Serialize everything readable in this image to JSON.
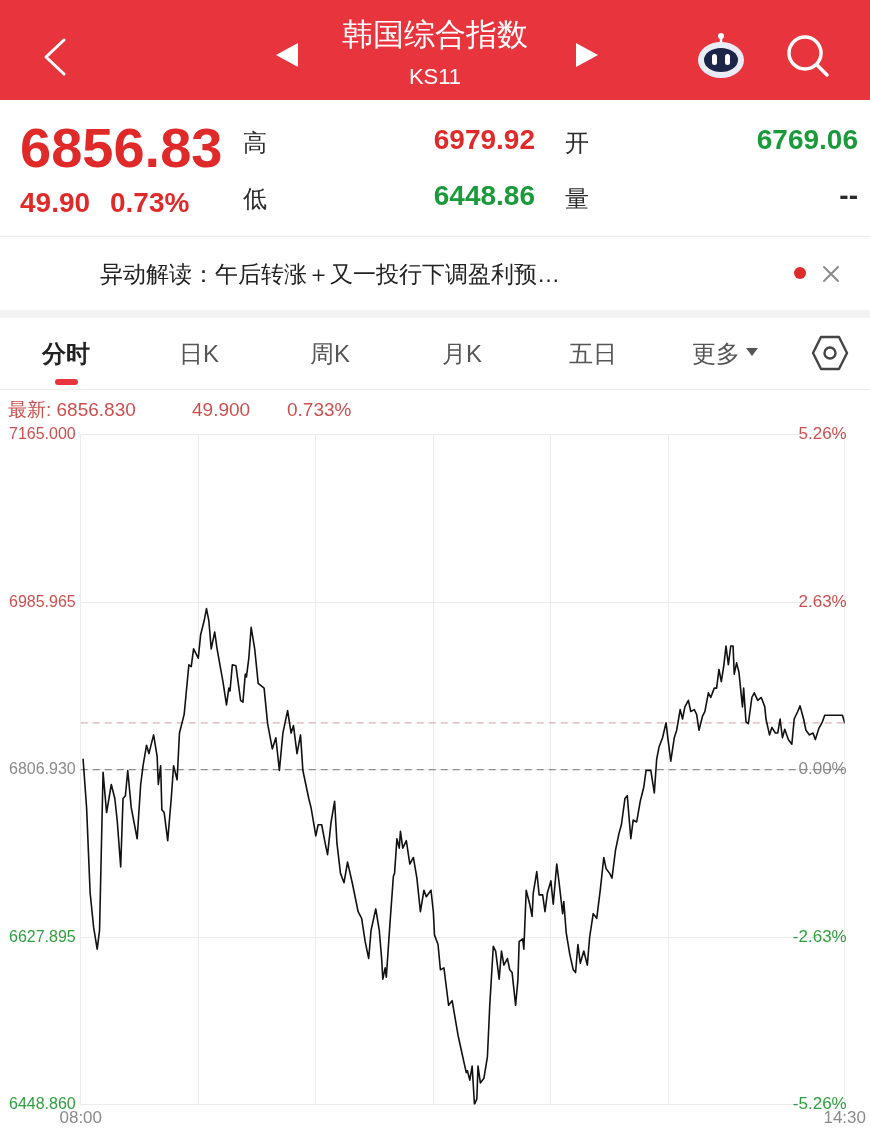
{
  "chart_data": {
    "type": "line",
    "title": "韩国综合指数",
    "subtitle": "KS11",
    "annotations": [
      "6856.83",
      "49.90",
      "0.73%",
      "高",
      "6979.92",
      "低",
      "6448.86",
      "开",
      "6769.06",
      "量",
      "--",
      "异动解读：午后转涨＋又一投行下调盈利预…",
      "分时",
      "日K",
      "周K",
      "月K",
      "五日",
      "更多",
      "最新: 6856.830",
      "49.900",
      "0.733%"
    ],
    "x": [
      8.02,
      8.05,
      8.08,
      8.11,
      8.14,
      8.16,
      8.19,
      8.22,
      8.26,
      8.29,
      8.31,
      8.34,
      8.36,
      8.38,
      8.4,
      8.43,
      8.48,
      8.51,
      8.53,
      8.56,
      8.58,
      8.62,
      8.65,
      8.66,
      8.68,
      8.69,
      8.71,
      8.74,
      8.77,
      8.79,
      8.82,
      8.84,
      8.88,
      8.92,
      8.94,
      8.96,
      9.0,
      9.02,
      9.05,
      9.07,
      9.09,
      9.11,
      9.14,
      9.16,
      9.21,
      9.24,
      9.26,
      9.27,
      9.29,
      9.32,
      9.36,
      9.38,
      9.4,
      9.41,
      9.43,
      9.45,
      9.48,
      9.51,
      9.56,
      9.59,
      9.63,
      9.66,
      9.69,
      9.72,
      9.76,
      9.79,
      9.81,
      9.84,
      9.87,
      9.89,
      9.94,
      9.96,
      10.0,
      10.02,
      10.05,
      10.08,
      10.1,
      10.13,
      10.16,
      10.18,
      10.21,
      10.24,
      10.27,
      10.31,
      10.36,
      10.39,
      10.42,
      10.45,
      10.47,
      10.51,
      10.54,
      10.56,
      10.57,
      10.59,
      10.6,
      10.63,
      10.66,
      10.67,
      10.69,
      10.71,
      10.72,
      10.74,
      10.77,
      10.8,
      10.83,
      10.86,
      10.89,
      10.92,
      10.94,
      10.98,
      11.0,
      11.01,
      11.04,
      11.06,
      11.09,
      11.1,
      11.13,
      11.16,
      11.21,
      11.25,
      11.28,
      11.29,
      11.31,
      11.33,
      11.35,
      11.37,
      11.38,
      11.4,
      11.43,
      11.46,
      11.48,
      11.51,
      11.53,
      11.56,
      11.58,
      11.6,
      11.63,
      11.65,
      11.67,
      11.7,
      11.72,
      11.73,
      11.76,
      11.77,
      11.79,
      11.82,
      11.84,
      11.85,
      11.88,
      11.9,
      11.93,
      11.95,
      11.97,
      12.0,
      12.02,
      12.05,
      12.07,
      12.1,
      12.11,
      12.13,
      12.16,
      12.19,
      12.21,
      12.23,
      12.25,
      12.28,
      12.31,
      12.33,
      12.36,
      12.39,
      12.42,
      12.45,
      12.47,
      12.5,
      12.52,
      12.55,
      12.58,
      12.6,
      12.63,
      12.65,
      12.68,
      12.7,
      12.73,
      12.76,
      12.79,
      12.81,
      12.85,
      12.88,
      12.9,
      12.92,
      12.95,
      12.98,
      12.99,
      13.02,
      13.05,
      13.07,
      13.1,
      13.12,
      13.14,
      13.17,
      13.19,
      13.22,
      13.24,
      13.26,
      13.29,
      13.31,
      13.34,
      13.36,
      13.39,
      13.41,
      13.43,
      13.45,
      13.47,
      13.49,
      13.51,
      13.53,
      13.55,
      13.56,
      13.58,
      13.6,
      13.63,
      13.64,
      13.66,
      13.68,
      13.71,
      13.73,
      13.76,
      13.79,
      13.82,
      13.83,
      13.86,
      13.88,
      13.91,
      13.93,
      13.95,
      13.97,
      13.99,
      14.02,
      14.05,
      14.07,
      14.1,
      14.12,
      14.15,
      14.17,
      14.2,
      14.23,
      14.25,
      14.28,
      14.31,
      14.33,
      14.48,
      14.5
    ],
    "values": [
      6818,
      6766,
      6675,
      6638,
      6615,
      6635,
      6804,
      6761,
      6791,
      6776,
      6753,
      6703,
      6776,
      6779,
      6806,
      6766,
      6733,
      6791,
      6811,
      6833,
      6824,
      6844,
      6821,
      6791,
      6811,
      6764,
      6761,
      6731,
      6776,
      6811,
      6796,
      6846,
      6866,
      6919,
      6917,
      6936,
      6926,
      6951,
      6966,
      6979,
      6966,
      6936,
      6954,
      6936,
      6901,
      6876,
      6894,
      6891,
      6919,
      6918,
      6881,
      6879,
      6909,
      6906,
      6926,
      6959,
      6936,
      6899,
      6894,
      6856,
      6829,
      6841,
      6806,
      6846,
      6870,
      6846,
      6854,
      6824,
      6844,
      6806,
      6776,
      6766,
      6736,
      6748,
      6748,
      6728,
      6716,
      6751,
      6773,
      6728,
      6696,
      6686,
      6708,
      6686,
      6655,
      6648,
      6623,
      6605,
      6635,
      6658,
      6635,
      6605,
      6583,
      6595,
      6585,
      6641,
      6693,
      6696,
      6733,
      6723,
      6741,
      6723,
      6731,
      6706,
      6713,
      6691,
      6655,
      6678,
      6671,
      6678,
      6655,
      6630,
      6620,
      6593,
      6595,
      6585,
      6555,
      6560,
      6523,
      6500,
      6483,
      6485,
      6475,
      6490,
      6449,
      6455,
      6490,
      6472,
      6477,
      6500,
      6555,
      6618,
      6613,
      6583,
      6613,
      6598,
      6605,
      6593,
      6590,
      6555,
      6583,
      6623,
      6626,
      6615,
      6678,
      6663,
      6650,
      6675,
      6698,
      6673,
      6673,
      6655,
      6675,
      6688,
      6663,
      6706,
      6686,
      6653,
      6666,
      6633,
      6610,
      6593,
      6590,
      6620,
      6600,
      6613,
      6598,
      6628,
      6653,
      6648,
      6678,
      6713,
      6701,
      6696,
      6691,
      6721,
      6739,
      6748,
      6776,
      6779,
      6733,
      6753,
      6751,
      6773,
      6788,
      6806,
      6806,
      6782,
      6818,
      6831,
      6841,
      6857,
      6846,
      6816,
      6841,
      6849,
      6871,
      6861,
      6874,
      6881,
      6869,
      6871,
      6866,
      6849,
      6864,
      6869,
      6889,
      6884,
      6894,
      6894,
      6914,
      6901,
      6917,
      6939,
      6919,
      6939,
      6939,
      6909,
      6921,
      6911,
      6874,
      6894,
      6858,
      6856,
      6884,
      6889,
      6881,
      6884,
      6874,
      6861,
      6844,
      6852,
      6846,
      6846,
      6861,
      6841,
      6850,
      6839,
      6834,
      6861,
      6869,
      6875,
      6861,
      6849,
      6844,
      6846,
      6839,
      6851,
      6858,
      6865,
      6865,
      6857
    ],
    "color": "#111111",
    "marker": "none",
    "xlim": [
      8,
      14.5
    ],
    "xticks": [
      {
        "value": 8,
        "label": "08:00"
      },
      {
        "value": 9,
        "label": null
      },
      {
        "value": 10,
        "label": null
      },
      {
        "value": 11,
        "label": null
      },
      {
        "value": 12,
        "label": null
      },
      {
        "value": 13,
        "label": null
      },
      {
        "value": 14.5,
        "label": "14:30"
      }
    ],
    "ylim": [
      6448.86,
      7165
    ],
    "yticks": [
      {
        "value": 6448.86,
        "label": "6448.860"
      },
      {
        "value": 6627.895,
        "label": "6627.895"
      },
      {
        "value": 6806.93,
        "label": "6806.930"
      },
      {
        "value": 6985.965,
        "label": "6985.965"
      },
      {
        "value": 7165,
        "label": "7165.000"
      }
    ],
    "y2lim": [
      -5.26,
      5.26
    ],
    "y2ticks": [
      {
        "value": -5.26,
        "label": "-5.26%"
      },
      {
        "value": -2.63,
        "label": "-2.63%"
      },
      {
        "value": 0,
        "label": "0.00%"
      },
      {
        "value": 2.63,
        "label": "2.63%"
      },
      {
        "value": 5.26,
        "label": "5.26%"
      }
    ],
    "ref_lines": [
      {
        "axis": "y",
        "value": 6806.93,
        "line_style": "dashed",
        "color": "#8c8c8c"
      },
      {
        "axis": "y",
        "value": 6856.83,
        "line_style": "dashed",
        "color": "#d6b4b4"
      }
    ],
    "grid": true,
    "legend": false
  }
}
